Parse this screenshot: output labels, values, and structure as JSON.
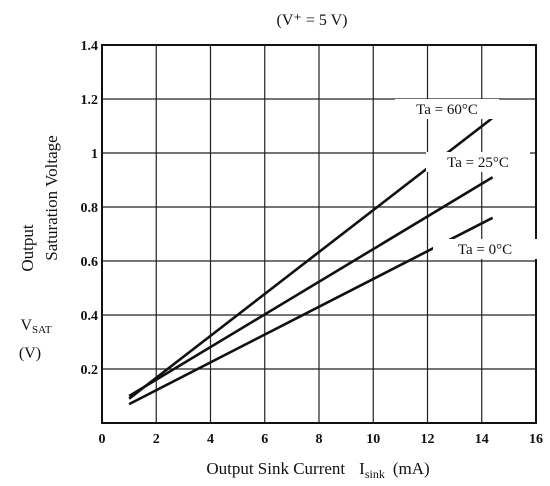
{
  "chart_data": {
    "type": "line",
    "condition": "(V⁺ = 5 V)",
    "xlabel": {
      "prefix": "Output  Sink  Current",
      "symbol": "I",
      "sub": "sink",
      "unit": "(mA)"
    },
    "ylabel": {
      "line1": "Output",
      "line2": "Saturation  Voltage",
      "symbol": "V",
      "sub": "SAT",
      "unit": "(V)"
    },
    "xlim": [
      0,
      16
    ],
    "ylim": [
      0,
      1.4
    ],
    "x_ticks": [
      "0",
      "2",
      "4",
      "6",
      "8",
      "10",
      "12",
      "14",
      "16"
    ],
    "y_ticks": [
      "0.2",
      "0.4",
      "0.6",
      "0.8",
      "1",
      "1.2",
      "1.4"
    ],
    "grid": true,
    "series": [
      {
        "name": "Ta = 60°C",
        "x": [
          1,
          14.4
        ],
        "y": [
          0.09,
          1.13
        ]
      },
      {
        "name": "Ta = 25°C",
        "x": [
          1,
          14.4
        ],
        "y": [
          0.1,
          0.91
        ]
      },
      {
        "name": "Ta = 0°C",
        "x": [
          1,
          14.4
        ],
        "y": [
          0.07,
          0.76
        ]
      }
    ]
  }
}
